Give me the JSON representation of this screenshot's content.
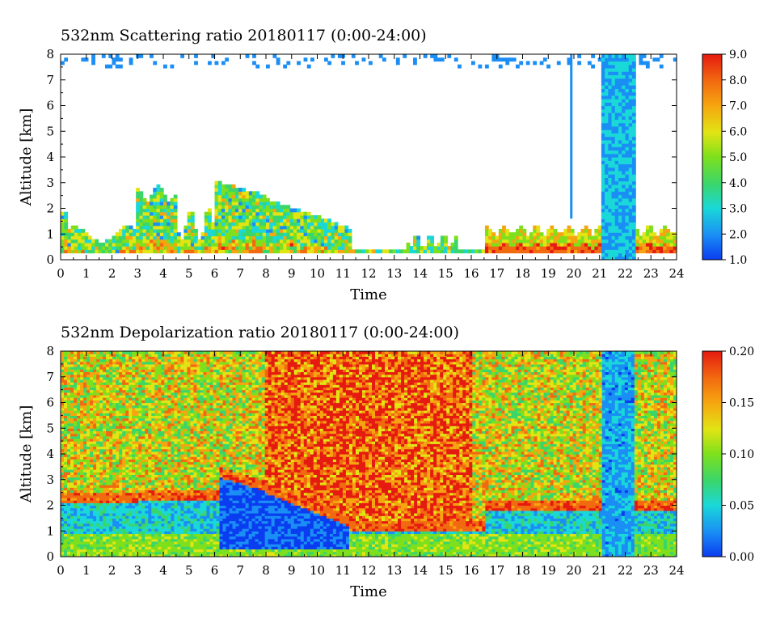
{
  "chart_data": [
    {
      "type": "heatmap",
      "title": "532nm Scattering ratio  20180117 (0:00-24:00)",
      "xlabel": "Time",
      "ylabel": "Altitude [km]",
      "xlim": [
        0,
        24
      ],
      "ylim": [
        0,
        8
      ],
      "x_ticks": [
        0,
        1,
        2,
        3,
        4,
        5,
        6,
        7,
        8,
        9,
        10,
        11,
        12,
        13,
        14,
        15,
        16,
        17,
        18,
        19,
        20,
        21,
        22,
        23,
        24
      ],
      "y_ticks": [
        0,
        1,
        2,
        3,
        4,
        5,
        6,
        7,
        8
      ],
      "colorbar": {
        "min": 1.0,
        "max": 9.0,
        "ticks": [
          "1.0",
          "2.0",
          "3.0",
          "4.0",
          "5.0",
          "6.0",
          "7.0",
          "8.0",
          "9.0"
        ]
      },
      "features": [
        {
          "time_range": [
            0,
            11.3
          ],
          "altitude_top_km": 2.5
        },
        {
          "time_range": [
            11.3,
            15.5
          ],
          "altitude_top_km": 0.3
        },
        {
          "time_range": [
            16.5,
            24
          ],
          "altitude_top_km": 0.8
        },
        {
          "time_range": [
            21.1,
            22.4
          ],
          "altitude_top_km": 8
        }
      ]
    },
    {
      "type": "heatmap",
      "title": "532nm Depolarization ratio  20180117 (0:00-24:00)",
      "xlabel": "Time",
      "ylabel": "Altitude [km]",
      "xlim": [
        0,
        24
      ],
      "ylim": [
        0,
        8
      ],
      "x_ticks": [
        0,
        1,
        2,
        3,
        4,
        5,
        6,
        7,
        8,
        9,
        10,
        11,
        12,
        13,
        14,
        15,
        16,
        17,
        18,
        19,
        20,
        21,
        22,
        23,
        24
      ],
      "y_ticks": [
        0,
        1,
        2,
        3,
        4,
        5,
        6,
        7,
        8
      ],
      "colorbar": {
        "min": 0.0,
        "max": 0.2,
        "ticks": [
          "0.00",
          "0.05",
          "0.10",
          "0.15",
          "0.20"
        ]
      }
    }
  ]
}
